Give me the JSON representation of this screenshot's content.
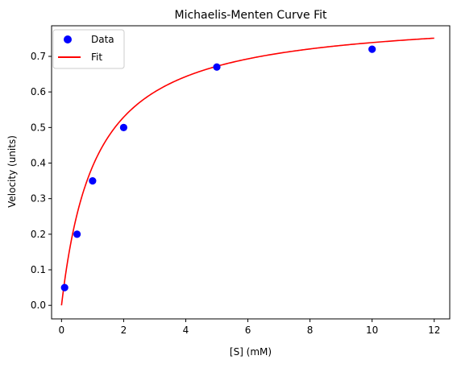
{
  "chart_data": {
    "type": "scatter",
    "title": "Michaelis-Menten Curve Fit",
    "xlabel": "[S] (mM)",
    "ylabel": "Velocity (units)",
    "xlim": [
      -0.32,
      12.5
    ],
    "ylim": [
      -0.038,
      0.786
    ],
    "xticks": [
      0,
      2,
      4,
      6,
      8,
      10,
      12
    ],
    "yticks": [
      0.0,
      0.1,
      0.2,
      0.3,
      0.4,
      0.5,
      0.6,
      0.7
    ],
    "xtick_labels": [
      "0",
      "2",
      "4",
      "6",
      "8",
      "10",
      "12"
    ],
    "ytick_labels": [
      "0.0",
      "0.1",
      "0.2",
      "0.3",
      "0.4",
      "0.5",
      "0.6",
      "0.7"
    ],
    "grid": false,
    "legend_position": "top-left",
    "series": [
      {
        "name": "Data",
        "kind": "scatter",
        "color": "#0000ff",
        "x": [
          0.1,
          0.5,
          1,
          2,
          5,
          10
        ],
        "y": [
          0.05,
          0.2,
          0.35,
          0.5,
          0.67,
          0.72
        ]
      },
      {
        "name": "Fit",
        "kind": "line",
        "color": "#ff0000",
        "model": "michaelis-menten",
        "vmax": 0.82,
        "km": 1.1,
        "x_range": [
          0,
          12
        ]
      }
    ]
  }
}
